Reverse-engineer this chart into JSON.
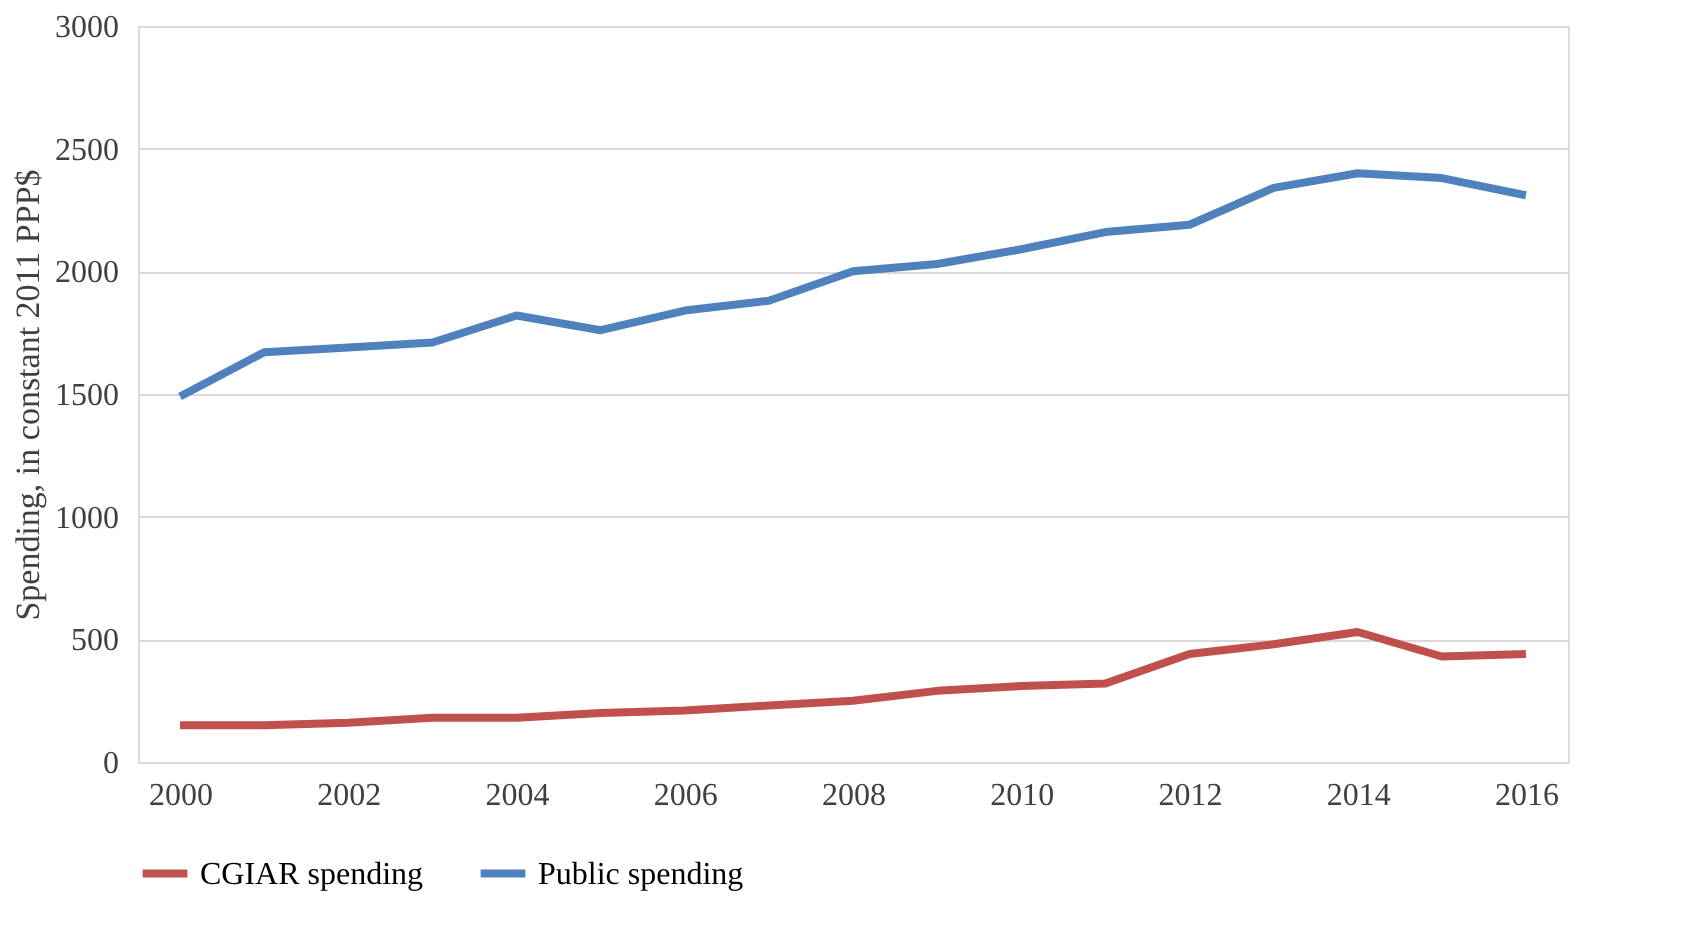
{
  "chart_data": {
    "type": "line",
    "ylabel": "Spending, in constant 2011 PPP$",
    "x": [
      2000,
      2001,
      2002,
      2003,
      2004,
      2005,
      2006,
      2007,
      2008,
      2009,
      2010,
      2011,
      2012,
      2013,
      2014,
      2015,
      2016
    ],
    "series": [
      {
        "name": "CGIAR spending",
        "color": "#c0504d",
        "values": [
          150,
          150,
          160,
          180,
          180,
          200,
          210,
          230,
          250,
          290,
          310,
          320,
          440,
          480,
          530,
          430,
          440
        ]
      },
      {
        "name": "Public spending",
        "color": "#4f81bd",
        "values": [
          1490,
          1670,
          1690,
          1710,
          1820,
          1760,
          1840,
          1880,
          2000,
          2030,
          2090,
          2160,
          2190,
          2340,
          2400,
          2380,
          2310
        ]
      }
    ],
    "xlim": [
      1999.5,
      2016.5
    ],
    "xticks": [
      2000,
      2002,
      2004,
      2006,
      2008,
      2010,
      2012,
      2014,
      2016
    ],
    "ylim": [
      0,
      3000
    ],
    "yticks": [
      0,
      500,
      1000,
      1500,
      2000,
      2500,
      3000
    ],
    "grid": "y",
    "legend": "bottom",
    "marker": "none",
    "line_style": "solid"
  }
}
